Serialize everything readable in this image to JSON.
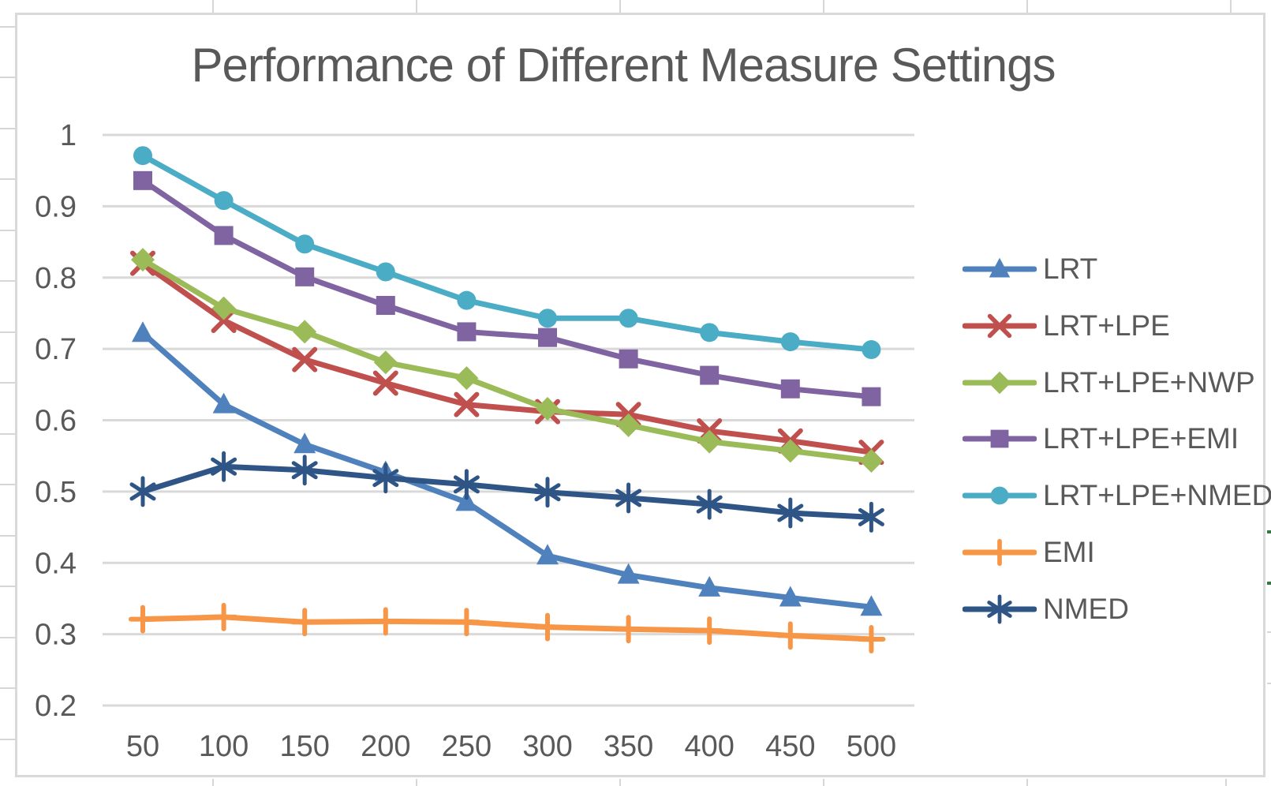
{
  "chart_data": {
    "type": "line",
    "title": "Performance of Different Measure Settings",
    "xlabel": "",
    "ylabel": "",
    "x": [
      50,
      100,
      150,
      200,
      250,
      300,
      350,
      400,
      450,
      500
    ],
    "x_tick_labels": [
      "50",
      "100",
      "150",
      "200",
      "250",
      "300",
      "350",
      "400",
      "450",
      "500"
    ],
    "y_tick_labels": [
      "1",
      "0.9",
      "0.8",
      "0.7",
      "0.6",
      "0.5",
      "0.4",
      "0.3",
      "0.2"
    ],
    "y_tick_values": [
      1.0,
      0.9,
      0.8,
      0.7,
      0.6,
      0.5,
      0.4,
      0.3,
      0.2
    ],
    "ylim": [
      0.2,
      1.0
    ],
    "grid": "horizontal",
    "legend_position": "right",
    "series": [
      {
        "name": "LRT",
        "color": "#4F81BD",
        "marker": "triangle",
        "values": [
          0.722,
          0.622,
          0.566,
          0.527,
          0.485,
          0.41,
          0.383,
          0.365,
          0.351,
          0.338
        ]
      },
      {
        "name": "LRT+LPE",
        "color": "#C0504D",
        "marker": "x",
        "values": [
          0.82,
          0.74,
          0.685,
          0.652,
          0.622,
          0.612,
          0.608,
          0.585,
          0.571,
          0.555
        ]
      },
      {
        "name": "LRT+LPE+NWP",
        "color": "#9BBB59",
        "marker": "diamond",
        "values": [
          0.825,
          0.757,
          0.724,
          0.681,
          0.659,
          0.616,
          0.593,
          0.57,
          0.557,
          0.543
        ]
      },
      {
        "name": "LRT+LPE+EMI",
        "color": "#8064A2",
        "marker": "square",
        "values": [
          0.936,
          0.859,
          0.801,
          0.761,
          0.724,
          0.716,
          0.686,
          0.663,
          0.644,
          0.633
        ]
      },
      {
        "name": "LRT+LPE+NMED",
        "color": "#4BACC6",
        "marker": "circle",
        "values": [
          0.971,
          0.908,
          0.847,
          0.808,
          0.768,
          0.743,
          0.743,
          0.723,
          0.71,
          0.699
        ]
      },
      {
        "name": "EMI",
        "color": "#F79646",
        "marker": "plus",
        "values": [
          0.321,
          0.324,
          0.317,
          0.318,
          0.317,
          0.31,
          0.307,
          0.305,
          0.298,
          0.293
        ]
      },
      {
        "name": "NMED",
        "color": "#2E5586",
        "marker": "asterisk",
        "values": [
          0.5,
          0.535,
          0.53,
          0.519,
          0.51,
          0.499,
          0.491,
          0.482,
          0.47,
          0.464
        ]
      }
    ]
  },
  "colors": {
    "text": "#595959",
    "gridline": "#D9D9D9",
    "chart_border": "#D9D9D9",
    "sheet_gridline": "#D6D6D6",
    "cell_accent_green": "#317A46",
    "background": "#FFFFFF"
  }
}
